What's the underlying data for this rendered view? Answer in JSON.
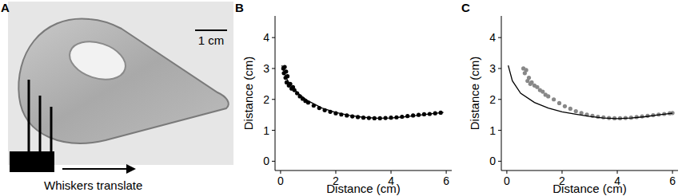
{
  "panel_a": {
    "label": "A",
    "scale_bar": "1 cm",
    "caption": "Whiskers translate"
  },
  "chart_data": [
    {
      "type": "scatter",
      "title": "B",
      "x_label": "Distance (cm)",
      "y_label": "Distance (cm)",
      "xlim": [
        -0.2,
        6.2
      ],
      "ylim": [
        -0.3,
        4.7
      ],
      "xticks": [
        0,
        2,
        4,
        6
      ],
      "yticks": [
        0,
        1,
        2,
        3,
        4
      ],
      "grid": false,
      "series": [
        {
          "type": "scatter",
          "color": "#000000",
          "marker": "circle",
          "x": [
            0.1,
            0.12,
            0.15,
            0.18,
            0.2,
            0.22,
            0.25,
            0.3,
            0.35,
            0.4,
            0.45,
            0.5,
            0.6,
            0.7,
            0.8,
            0.9,
            1.0,
            1.2,
            1.4,
            1.6,
            1.8,
            2.0,
            2.2,
            2.4,
            2.6,
            2.8,
            3.0,
            3.2,
            3.4,
            3.6,
            3.8,
            4.0,
            4.2,
            4.4,
            4.6,
            4.8,
            5.0,
            5.2,
            5.4,
            5.6,
            5.8
          ],
          "values": [
            3.0,
            2.85,
            3.05,
            2.7,
            2.9,
            2.55,
            2.75,
            2.45,
            2.5,
            2.35,
            2.4,
            2.3,
            2.2,
            2.1,
            2.02,
            1.95,
            1.9,
            1.8,
            1.72,
            1.65,
            1.6,
            1.55,
            1.51,
            1.48,
            1.45,
            1.43,
            1.41,
            1.4,
            1.39,
            1.39,
            1.4,
            1.41,
            1.42,
            1.44,
            1.46,
            1.48,
            1.5,
            1.52,
            1.53,
            1.55,
            1.57
          ]
        },
        {
          "type": "line",
          "color": "#000000",
          "line_style": "solid",
          "x": [
            0.05,
            0.2,
            0.4,
            0.7,
            1.0,
            1.5,
            2.0,
            2.5,
            3.0,
            3.5,
            4.0,
            4.5,
            5.0,
            5.5,
            5.9
          ],
          "values": [
            3.1,
            2.7,
            2.4,
            2.15,
            1.95,
            1.72,
            1.58,
            1.48,
            1.42,
            1.39,
            1.4,
            1.44,
            1.49,
            1.54,
            1.58
          ]
        }
      ]
    },
    {
      "type": "scatter",
      "title": "C",
      "x_label": "Distance (cm)",
      "y_label": "Distance (cm)",
      "xlim": [
        -0.2,
        6.2
      ],
      "ylim": [
        -0.3,
        4.7
      ],
      "xticks": [
        0,
        2,
        4,
        6
      ],
      "yticks": [
        0,
        1,
        2,
        3,
        4
      ],
      "grid": false,
      "series": [
        {
          "type": "scatter",
          "color": "#888888",
          "marker": "circle",
          "x": [
            0.6,
            0.65,
            0.7,
            0.75,
            0.8,
            0.85,
            0.9,
            1.0,
            1.1,
            1.2,
            1.3,
            1.4,
            1.5,
            1.7,
            1.9,
            2.1,
            2.3,
            2.5,
            2.7,
            2.9,
            3.1,
            3.3,
            3.5,
            3.7,
            3.9,
            4.1,
            4.3,
            4.5,
            4.7,
            4.9,
            5.1,
            5.3,
            5.5,
            5.7,
            5.9,
            6.0
          ],
          "values": [
            3.0,
            2.85,
            2.95,
            2.6,
            2.7,
            2.5,
            2.55,
            2.45,
            2.4,
            2.3,
            2.25,
            2.15,
            2.1,
            2.0,
            1.88,
            1.78,
            1.7,
            1.62,
            1.56,
            1.51,
            1.47,
            1.44,
            1.42,
            1.4,
            1.39,
            1.39,
            1.4,
            1.41,
            1.43,
            1.45,
            1.47,
            1.49,
            1.51,
            1.53,
            1.55,
            1.56
          ]
        },
        {
          "type": "line",
          "color": "#000000",
          "line_style": "solid",
          "x": [
            0.05,
            0.2,
            0.5,
            1.0,
            1.5,
            2.0,
            2.5,
            3.0,
            3.5,
            4.0,
            4.5,
            5.0,
            5.5,
            6.0
          ],
          "values": [
            3.1,
            2.6,
            2.2,
            1.9,
            1.72,
            1.6,
            1.52,
            1.45,
            1.4,
            1.38,
            1.4,
            1.44,
            1.5,
            1.55
          ]
        }
      ]
    }
  ]
}
